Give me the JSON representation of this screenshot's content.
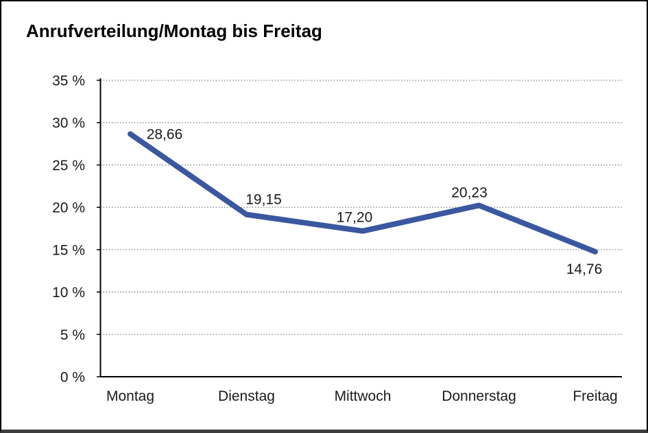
{
  "chart_data": {
    "type": "line",
    "title": "Anrufverteilung/Montag bis Freitag",
    "categories": [
      "Montag",
      "Dienstag",
      "Mittwoch",
      "Donnerstag",
      "Freitag"
    ],
    "series": [
      {
        "name": "Anrufverteilung",
        "values": [
          28.66,
          19.15,
          17.2,
          20.23,
          14.76
        ],
        "color": "#3a57a0"
      }
    ],
    "data_labels": [
      "28,66",
      "19,15",
      "17,20",
      "20,23",
      "14,76"
    ],
    "xlabel": "",
    "ylabel": "",
    "ylim": [
      0,
      35
    ],
    "y_step": 5,
    "y_ticks": [
      {
        "value": 0,
        "label": "0 %"
      },
      {
        "value": 5,
        "label": "5 %"
      },
      {
        "value": 10,
        "label": "10 %"
      },
      {
        "value": 15,
        "label": "15 %"
      },
      {
        "value": 20,
        "label": "20 %"
      },
      {
        "value": 25,
        "label": "25 %"
      },
      {
        "value": 30,
        "label": "30 %"
      },
      {
        "value": 35,
        "label": "35 %"
      }
    ],
    "grid": "horizontal-dotted",
    "legend": "none",
    "colors": {
      "line": "#3a57a0",
      "gridline": "#7a7a7a",
      "axis": "#000000",
      "text": "#1a1a1a",
      "frame_border": "#000000"
    }
  }
}
